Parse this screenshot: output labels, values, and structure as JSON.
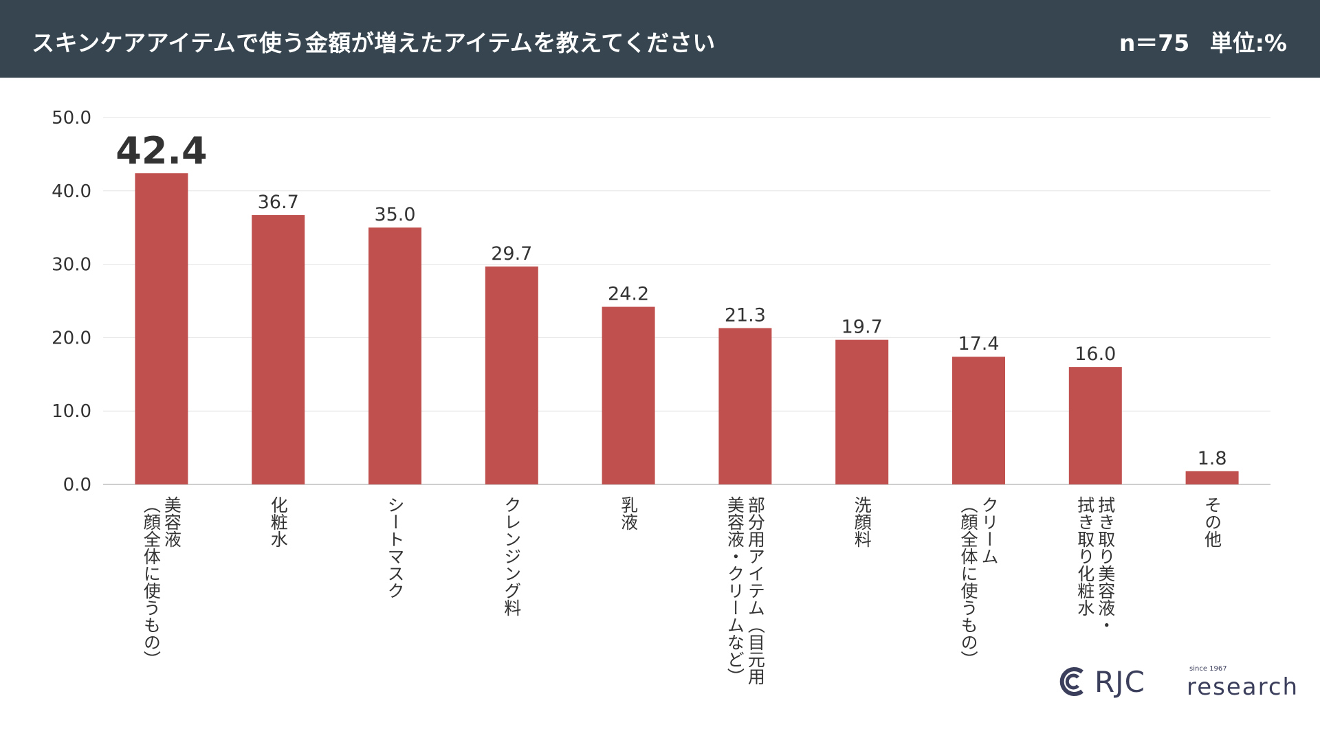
{
  "header": {
    "title": "スキンケアアイテムで使う金額が増えたアイテムを教えてください",
    "sample": "n＝75",
    "unit": "単位:%"
  },
  "chart_data": {
    "type": "bar",
    "title": "スキンケアアイテムで使う金額が増えたアイテムを教えてください",
    "xlabel": "",
    "ylabel": "%",
    "ylim": [
      0,
      50
    ],
    "yticks": [
      "0.0",
      "10.0",
      "20.0",
      "30.0",
      "40.0",
      "50.0"
    ],
    "grid": true,
    "bar_color": "#c0504d",
    "categories": [
      [
        "美容液",
        "（顔全体に使うもの）"
      ],
      [
        "化粧水"
      ],
      [
        "シートマスク"
      ],
      [
        "クレンジング料"
      ],
      [
        "乳液"
      ],
      [
        "部分用アイテム（目元用",
        "美容液・クリームなど）"
      ],
      [
        "洗顔料"
      ],
      [
        "クリーム",
        "（顔全体に使うもの）"
      ],
      [
        "拭き取り美容液・",
        "拭き取り化粧水"
      ],
      [
        "その他"
      ]
    ],
    "values": [
      42.4,
      36.7,
      35.0,
      29.7,
      24.2,
      21.3,
      19.7,
      17.4,
      16.0,
      1.8
    ],
    "value_labels": [
      "42.4",
      "36.7",
      "35.0",
      "29.7",
      "24.2",
      "21.3",
      "19.7",
      "17.4",
      "16.0",
      "1.8"
    ]
  },
  "logo": {
    "brand": "RJC",
    "since": "since 1967",
    "name": "research"
  }
}
